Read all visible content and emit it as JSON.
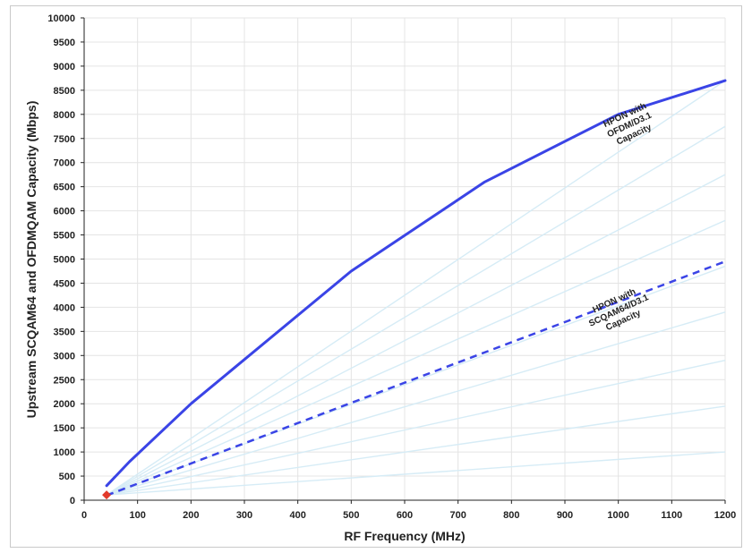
{
  "chart_data": {
    "type": "line",
    "title": "",
    "xlabel": "RF Frequency (MHz)",
    "ylabel": "Upstream SCQAM64 and OFDMQAM Capacity (Mbps)",
    "xlim": [
      0,
      1200
    ],
    "ylim": [
      0,
      10000
    ],
    "x_ticks": [
      "0",
      "100",
      "200",
      "300",
      "400",
      "500",
      "600",
      "700",
      "800",
      "900",
      "1000",
      "1100",
      "1200"
    ],
    "y_ticks": [
      "0",
      "500",
      "1000",
      "1500",
      "2000",
      "2500",
      "3000",
      "3500",
      "4000",
      "4500",
      "5000",
      "5500",
      "6000",
      "6500",
      "7000",
      "7500",
      "8000",
      "8500",
      "9000",
      "9500",
      "10000"
    ],
    "grid": true,
    "series": [
      {
        "style": "solid",
        "color": "#3a44e6",
        "points": [
          [
            42,
            300
          ],
          [
            85,
            800
          ],
          [
            200,
            2000
          ],
          [
            500,
            4750
          ],
          [
            750,
            6600
          ],
          [
            1000,
            8000
          ],
          [
            1200,
            8700
          ]
        ]
      },
      {
        "style": "dashed",
        "color": "#3a44e6",
        "points": [
          [
            42,
            100
          ],
          [
            1200,
            4950
          ]
        ]
      }
    ],
    "reference_lines": {
      "color": "#d6ecf6",
      "end_values_at_1200": [
        1000,
        1950,
        2900,
        3900,
        4850,
        5800,
        6750,
        7750,
        8700
      ]
    },
    "marker": {
      "x": 42,
      "y": 110,
      "color": "#e23a2a",
      "shape": "diamond"
    },
    "annotations": [
      {
        "lines": [
          "HPON with",
          "OFDM/D3.1",
          "Capacity"
        ],
        "x": 1020,
        "y": 7800,
        "rotate": -25
      },
      {
        "lines": [
          "HPON with",
          "SCQAM64/D3.1",
          "Capacity"
        ],
        "x": 1000,
        "y": 3950,
        "rotate": -25
      }
    ]
  }
}
